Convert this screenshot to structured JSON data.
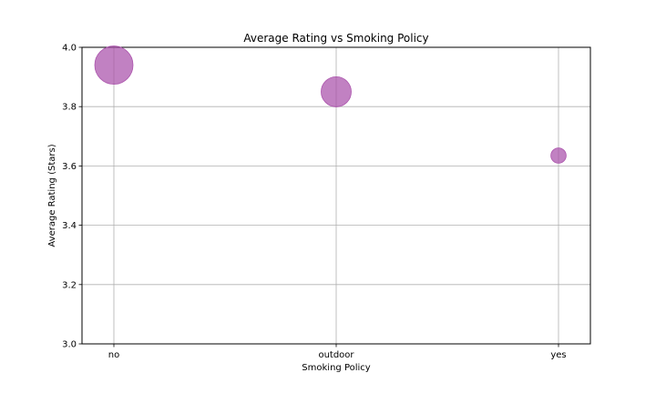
{
  "chart_data": {
    "type": "scatter",
    "title": "Average Rating vs Smoking Policy",
    "xlabel": "Smoking Policy",
    "ylabel": "Average Rating (Stars)",
    "categories": [
      "no",
      "outdoor",
      "yes"
    ],
    "values": [
      3.94,
      3.85,
      3.635
    ],
    "relative_size": [
      1.0,
      0.62,
      0.16
    ],
    "ylim": [
      3.0,
      4.0
    ],
    "yticks": [
      "3.0",
      "3.2",
      "3.4",
      "3.6",
      "3.8",
      "4.0"
    ],
    "grid": true,
    "marker_color": "#a74ba8",
    "marker_alpha": 0.7
  }
}
